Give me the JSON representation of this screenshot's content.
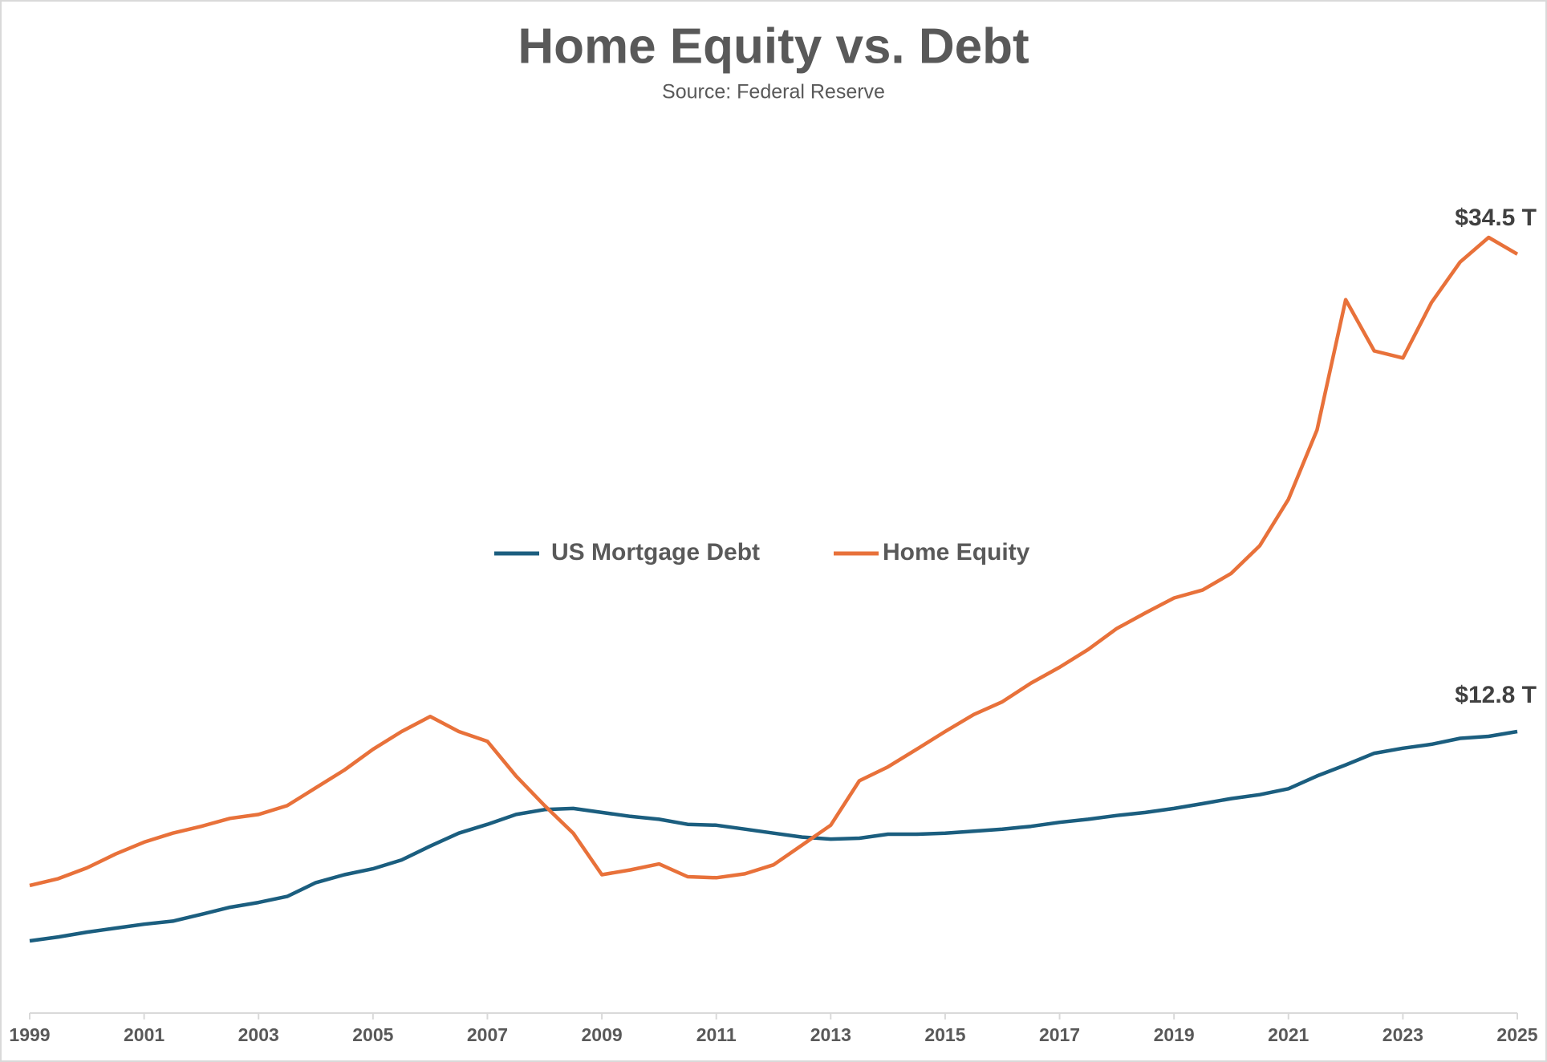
{
  "chart_data": {
    "type": "line",
    "title": "Home Equity vs. Debt",
    "subtitle": "Source: Federal Reserve",
    "x": [
      1999,
      1999.5,
      2000,
      2000.5,
      2001,
      2001.5,
      2002,
      2002.5,
      2003,
      2003.5,
      2004,
      2004.5,
      2005,
      2005.5,
      2006,
      2006.5,
      2007,
      2007.5,
      2008,
      2008.5,
      2009,
      2009.5,
      2010,
      2010.5,
      2011,
      2011.5,
      2012,
      2012.5,
      2013,
      2013.5,
      2014,
      2014.5,
      2015,
      2015.5,
      2016,
      2016.5,
      2017,
      2017.5,
      2018,
      2018.5,
      2019,
      2019.5,
      2020,
      2020.5,
      2021,
      2021.5,
      2022,
      2022.5,
      2023,
      2023.5,
      2024,
      2024.5,
      2025
    ],
    "series": [
      {
        "name": "US Mortgage Debt",
        "color": "#1b5e7f",
        "values": [
          3.28,
          3.46,
          3.68,
          3.86,
          4.04,
          4.18,
          4.49,
          4.81,
          5.03,
          5.3,
          5.93,
          6.29,
          6.56,
          6.96,
          7.59,
          8.18,
          8.58,
          9.03,
          9.25,
          9.3,
          9.12,
          8.94,
          8.81,
          8.58,
          8.54,
          8.36,
          8.18,
          8.0,
          7.91,
          7.95,
          8.13,
          8.13,
          8.18,
          8.27,
          8.36,
          8.49,
          8.67,
          8.81,
          8.98,
          9.12,
          9.3,
          9.52,
          9.75,
          9.93,
          10.2,
          10.78,
          11.28,
          11.81,
          12.04,
          12.22,
          12.49,
          12.58,
          12.8
        ]
      },
      {
        "name": "Home Equity",
        "color": "#e8713a",
        "values": [
          5.8,
          6.11,
          6.6,
          7.23,
          7.77,
          8.18,
          8.49,
          8.85,
          9.03,
          9.43,
          10.24,
          11.05,
          11.99,
          12.8,
          13.48,
          12.8,
          12.35,
          10.78,
          9.43,
          8.18,
          6.29,
          6.51,
          6.78,
          6.2,
          6.15,
          6.33,
          6.74,
          7.64,
          8.54,
          10.56,
          11.19,
          11.99,
          12.8,
          13.57,
          14.15,
          15.0,
          15.72,
          16.53,
          17.48,
          18.19,
          18.87,
          19.23,
          19.99,
          21.25,
          23.36,
          26.51,
          32.43,
          30.1,
          29.78,
          32.3,
          34.14,
          35.26,
          34.5
        ]
      }
    ],
    "annotations": [
      {
        "text": "$34.5 T",
        "x": 2025,
        "y": 34.5
      },
      {
        "text": "$12.8 T",
        "x": 2025,
        "y": 12.8
      }
    ],
    "xlim": [
      1999,
      2025
    ],
    "xticks": [
      1999,
      2001,
      2003,
      2005,
      2007,
      2009,
      2011,
      2013,
      2015,
      2017,
      2019,
      2021,
      2023,
      2025
    ],
    "ylim": [
      0,
      40
    ],
    "grid": false,
    "legend": "center"
  }
}
